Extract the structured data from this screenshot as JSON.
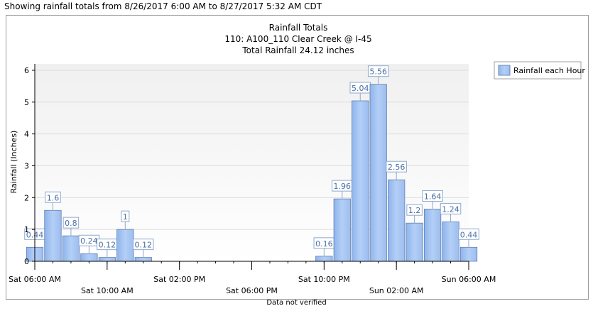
{
  "header_text": "Showing rainfall totals from 8/26/2017 6:00 AM to 8/27/2017 5:32 AM CDT",
  "footer_text": "Data not verified",
  "chart_data": {
    "type": "bar",
    "title": "Rainfall Totals",
    "subtitle": "110: A100_110 Clear Creek @ I-45",
    "total_text": "Total Rainfall 24.12 inches",
    "ylabel": "Rainfall (Inches)",
    "ylim": [
      0,
      6.2
    ],
    "yticks": [
      0,
      1,
      2,
      3,
      4,
      5,
      6
    ],
    "x_start": "Sat 06:00 AM",
    "hours": 24,
    "x_tick_labels": [
      {
        "hour": 0,
        "label": "Sat 06:00 AM",
        "row": 1
      },
      {
        "hour": 4,
        "label": "Sat 10:00 AM",
        "row": 2
      },
      {
        "hour": 8,
        "label": "Sat 02:00 PM",
        "row": 1
      },
      {
        "hour": 12,
        "label": "Sat 06:00 PM",
        "row": 2
      },
      {
        "hour": 16,
        "label": "Sat 10:00 PM",
        "row": 1
      },
      {
        "hour": 20,
        "label": "Sun 02:00 AM",
        "row": 2
      },
      {
        "hour": 24,
        "label": "Sun 06:00 AM",
        "row": 1
      }
    ],
    "grid": true,
    "legend_position": "top-right",
    "series": [
      {
        "name": "Rainfall each Hour",
        "color": "#a4c4f2",
        "values": [
          0.44,
          1.6,
          0.8,
          0.24,
          0.12,
          1,
          0.12,
          0,
          0,
          0,
          0,
          0,
          0,
          0,
          0,
          0,
          0.16,
          1.96,
          5.04,
          5.56,
          2.56,
          1.2,
          1.64,
          1.24,
          0.44
        ],
        "labels": [
          "0.44",
          "1.6",
          "0.8",
          "0.24",
          "0.12",
          "1",
          "0.12",
          "",
          "",
          "",
          "",
          "",
          "",
          "",
          "",
          "",
          "0.16",
          "1.96",
          "5.04",
          "5.56",
          "2.56",
          "1.2",
          "1.64",
          "1.24",
          "0.44"
        ]
      }
    ]
  }
}
